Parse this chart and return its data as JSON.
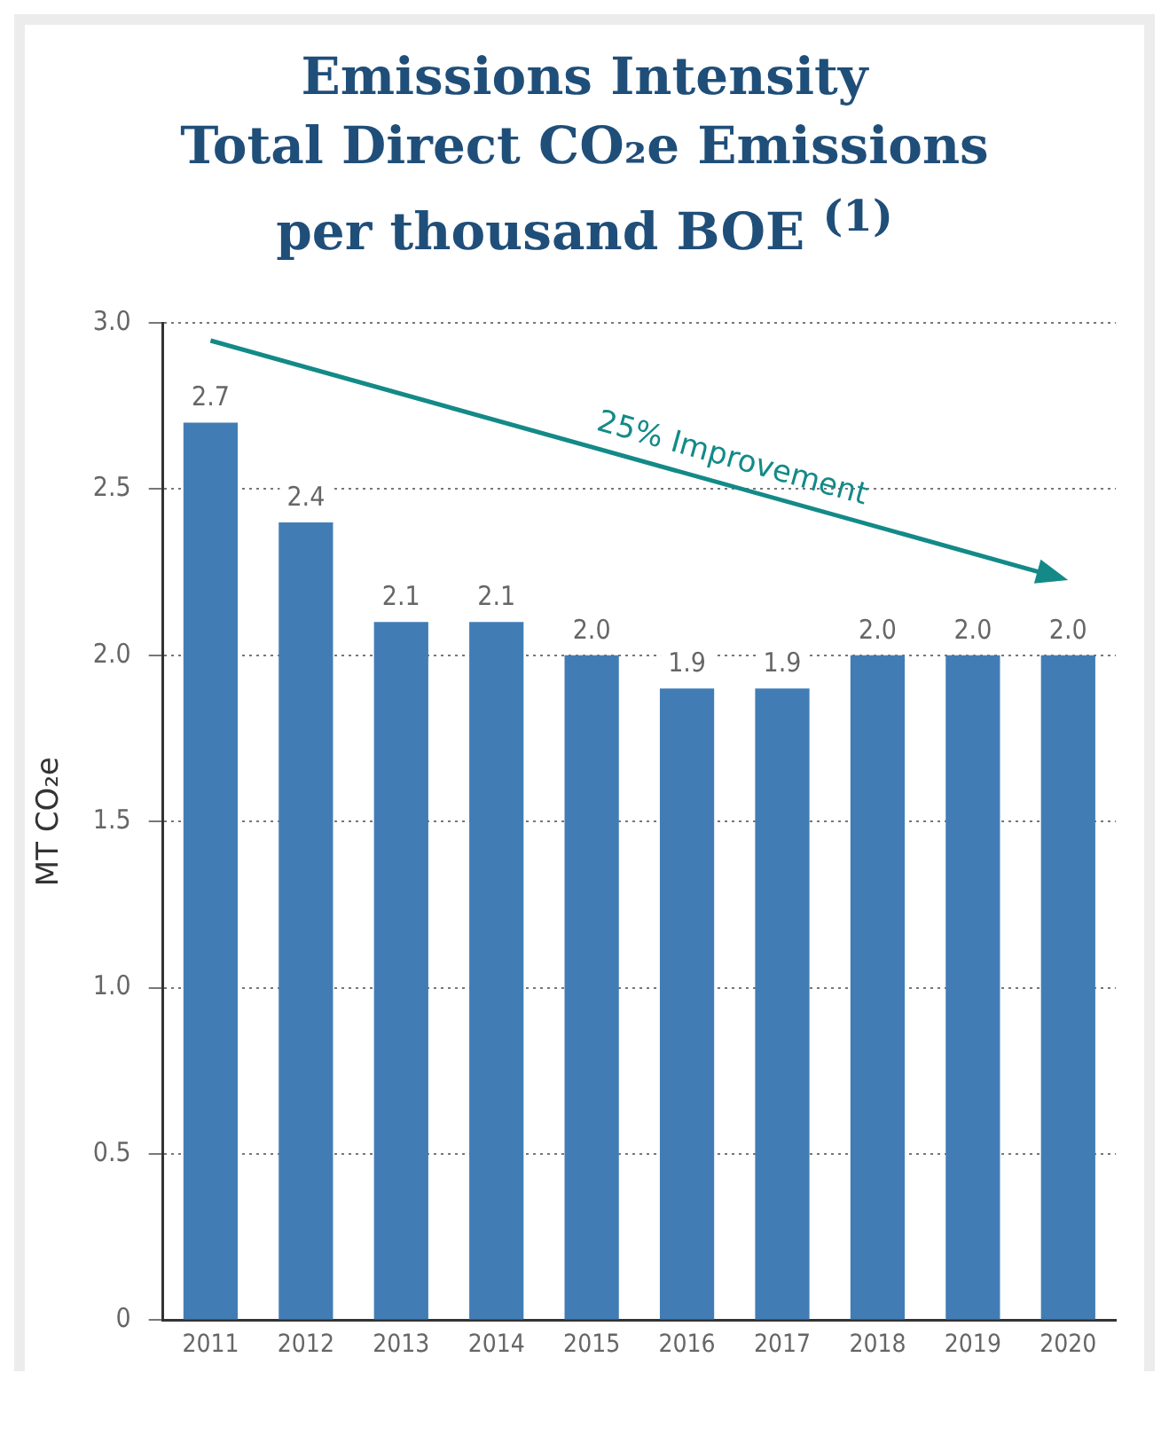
{
  "chart_data": {
    "type": "bar",
    "title": "Emissions Intensity\nTotal Direct CO₂e Emissions\nper thousand BOE $^{(1)}$",
    "ylabel": "MT CO₂e",
    "categories": [
      "2011",
      "2012",
      "2013",
      "2014",
      "2015",
      "2016",
      "2017",
      "2018",
      "2019",
      "2020"
    ],
    "values": [
      2.7,
      2.4,
      2.1,
      2.1,
      2.0,
      1.9,
      1.9,
      2.0,
      2.0,
      2.0
    ],
    "value_labels": [
      "2.7",
      "2.4",
      "2.1",
      "2.1",
      "2.0",
      "1.9",
      "1.9",
      "2.0",
      "2.0",
      "2.0"
    ],
    "color": "#417db4",
    "ylim": [
      0,
      3
    ],
    "yticks": [
      0,
      {
        "value": 0.5,
        "label": "0.5"
      },
      {
        "value": 1,
        "label": "1.0"
      },
      {
        "value": 1.5,
        "label": "1.5"
      },
      {
        "value": 2,
        "label": "2.0"
      },
      {
        "value": 2.5,
        "label": "2.5"
      },
      {
        "value": 3,
        "label": "3.0"
      }
    ],
    "grid": "y",
    "annotations": [
      "25% Improvement"
    ]
  }
}
